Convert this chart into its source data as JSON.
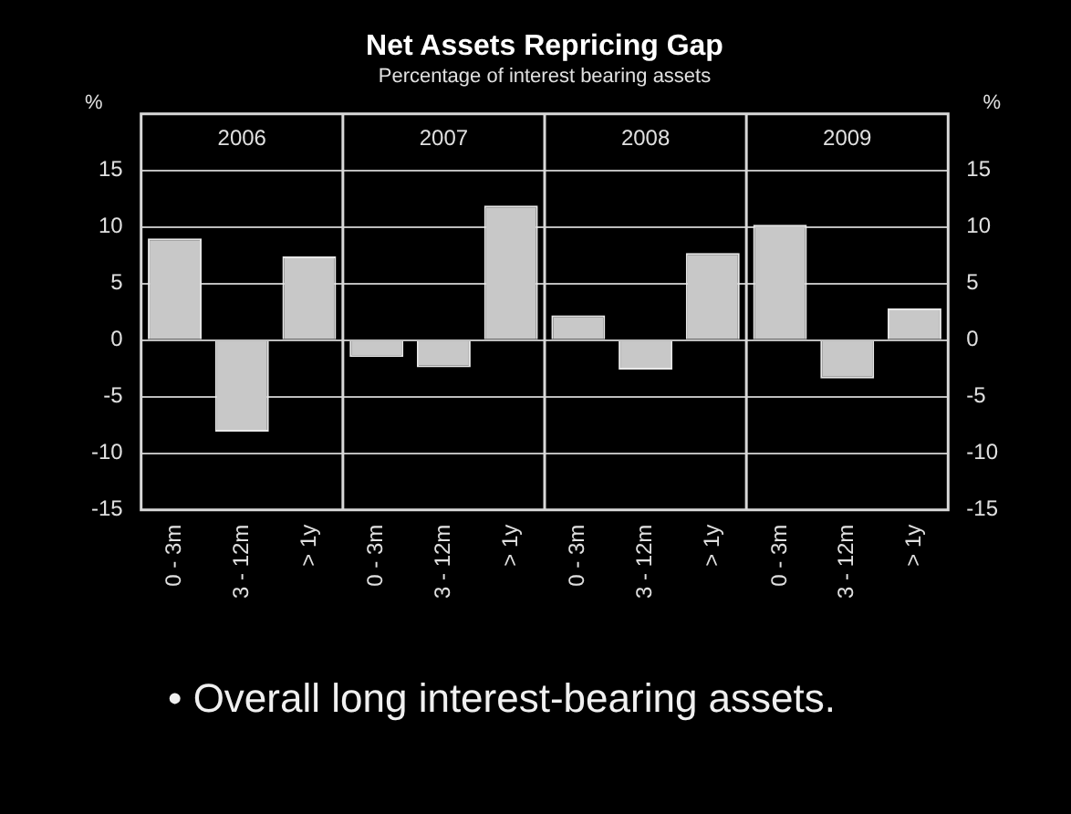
{
  "chart_data": {
    "type": "bar",
    "title": "Net Assets Repricing Gap",
    "subtitle": "Percentage of interest bearing assets",
    "ylabel": "%",
    "y2label": "%",
    "categories": [
      "0 - 3m",
      "3 - 12m",
      "> 1y",
      "0 - 3m",
      "3 - 12m",
      "> 1y",
      "0 - 3m",
      "3 - 12m",
      "> 1y",
      "0 - 3m",
      "3 - 12m",
      "> 1y"
    ],
    "values": [
      9.0,
      -8.1,
      7.4,
      -1.5,
      -2.4,
      11.9,
      2.2,
      -2.6,
      7.7,
      10.2,
      -3.4,
      2.8
    ],
    "color": "#c8c8c8",
    "ylim": [
      -15,
      20
    ],
    "yticks": [
      -15,
      -10,
      -5,
      0,
      5,
      10,
      15
    ],
    "y2lim": [
      -15,
      20
    ],
    "y2ticks": [
      -15,
      -10,
      -5,
      0,
      5,
      10,
      15
    ],
    "grid": "y",
    "annotations": [
      "2006",
      "2007",
      "2008",
      "2009",
      "• Overall long interest-bearing assets."
    ]
  }
}
